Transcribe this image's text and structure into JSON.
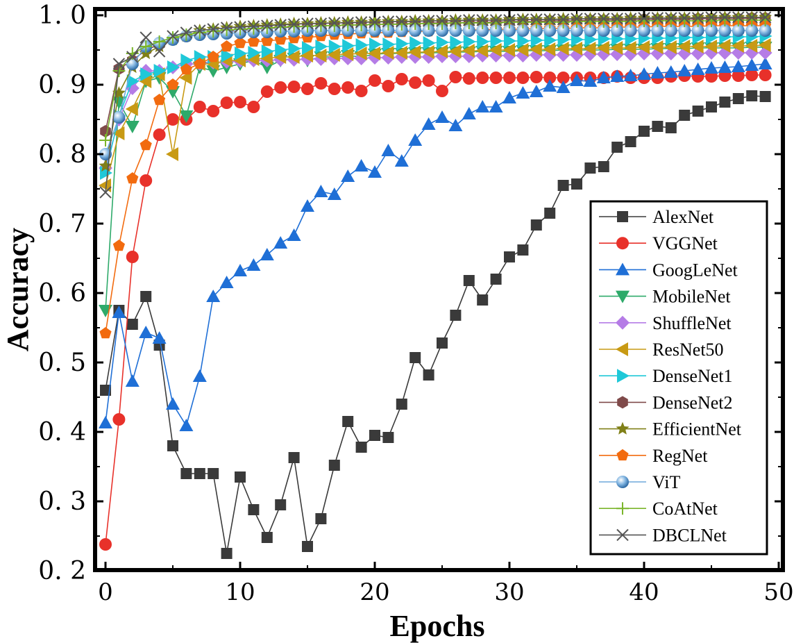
{
  "chart_data": {
    "type": "line",
    "title": "",
    "xlabel": "Epochs",
    "ylabel": "Accuracy",
    "xlim": [
      -1,
      50
    ],
    "ylim": [
      0.2,
      1.01
    ],
    "xticks": [
      0,
      10,
      20,
      30,
      40,
      50
    ],
    "yticks": [
      0.2,
      0.3,
      0.4,
      0.5,
      0.6,
      0.7,
      0.8,
      0.9,
      1.0
    ],
    "xtick_labels": [
      "0",
      "10",
      "20",
      "30",
      "40",
      "50"
    ],
    "ytick_labels": [
      "0. 2",
      "0. 3",
      "0. 4",
      "0. 5",
      "0. 6",
      "0. 7",
      "0. 8",
      "0. 9",
      "1. 0"
    ],
    "grid": false,
    "legend_position": "bottom-right",
    "x": [
      0,
      1,
      2,
      3,
      4,
      5,
      6,
      7,
      8,
      9,
      10,
      11,
      12,
      13,
      14,
      15,
      16,
      17,
      18,
      19,
      20,
      21,
      22,
      23,
      24,
      25,
      26,
      27,
      28,
      29,
      30,
      31,
      32,
      33,
      34,
      35,
      36,
      37,
      38,
      39,
      40,
      41,
      42,
      43,
      44,
      45,
      46,
      47,
      48,
      49
    ],
    "series": [
      {
        "name": "AlexNet",
        "color": "#3a3a3a",
        "marker": "square",
        "values": [
          0.46,
          0.575,
          0.555,
          0.595,
          0.525,
          0.38,
          0.34,
          0.34,
          0.34,
          0.225,
          0.335,
          0.288,
          0.248,
          0.295,
          0.363,
          0.235,
          0.275,
          0.352,
          0.415,
          0.378,
          0.395,
          0.392,
          0.44,
          0.507,
          0.482,
          0.528,
          0.568,
          0.618,
          0.59,
          0.62,
          0.652,
          0.662,
          0.698,
          0.715,
          0.755,
          0.757,
          0.78,
          0.782,
          0.81,
          0.818,
          0.833,
          0.84,
          0.838,
          0.856,
          0.862,
          0.868,
          0.875,
          0.88,
          0.884,
          0.883
        ]
      },
      {
        "name": "VGGNet",
        "color": "#e8312a",
        "marker": "circle",
        "values": [
          0.238,
          0.418,
          0.652,
          0.762,
          0.828,
          0.85,
          0.85,
          0.868,
          0.862,
          0.874,
          0.875,
          0.868,
          0.89,
          0.896,
          0.897,
          0.894,
          0.902,
          0.894,
          0.896,
          0.891,
          0.906,
          0.898,
          0.908,
          0.903,
          0.906,
          0.891,
          0.911,
          0.909,
          0.91,
          0.91,
          0.91,
          0.91,
          0.911,
          0.91,
          0.91,
          0.91,
          0.91,
          0.91,
          0.912,
          0.91,
          0.91,
          0.91,
          0.912,
          0.913,
          0.912,
          0.912,
          0.913,
          0.913,
          0.914,
          0.914
        ]
      },
      {
        "name": "GoogLeNet",
        "color": "#1f6fd6",
        "marker": "triangle-up",
        "values": [
          0.413,
          0.572,
          0.473,
          0.543,
          0.535,
          0.44,
          0.409,
          0.48,
          0.595,
          0.615,
          0.632,
          0.64,
          0.655,
          0.672,
          0.683,
          0.725,
          0.746,
          0.742,
          0.768,
          0.783,
          0.774,
          0.805,
          0.79,
          0.82,
          0.843,
          0.853,
          0.841,
          0.858,
          0.868,
          0.868,
          0.881,
          0.888,
          0.89,
          0.898,
          0.896,
          0.906,
          0.905,
          0.91,
          0.912,
          0.913,
          0.915,
          0.917,
          0.918,
          0.92,
          0.922,
          0.924,
          0.925,
          0.926,
          0.928,
          0.93
        ]
      },
      {
        "name": "MobileNet",
        "color": "#2eaa6a",
        "marker": "triangle-down",
        "values": [
          0.575,
          0.875,
          0.84,
          0.905,
          0.91,
          0.89,
          0.855,
          0.925,
          0.92,
          0.925,
          0.93,
          0.935,
          0.925,
          0.935,
          0.938,
          0.935,
          0.94,
          0.94,
          0.942,
          0.94,
          0.944,
          0.945,
          0.945,
          0.946,
          0.946,
          0.946,
          0.947,
          0.947,
          0.948,
          0.948,
          0.948,
          0.949,
          0.949,
          0.949,
          0.95,
          0.95,
          0.95,
          0.95,
          0.951,
          0.951,
          0.951,
          0.952,
          0.952,
          0.952,
          0.953,
          0.953,
          0.953,
          0.953,
          0.954,
          0.954
        ]
      },
      {
        "name": "ShuffleNet",
        "color": "#b57ce6",
        "marker": "diamond",
        "values": [
          0.78,
          0.85,
          0.895,
          0.92,
          0.92,
          0.925,
          0.93,
          0.93,
          0.932,
          0.933,
          0.934,
          0.935,
          0.935,
          0.936,
          0.936,
          0.937,
          0.937,
          0.938,
          0.938,
          0.938,
          0.939,
          0.939,
          0.94,
          0.94,
          0.94,
          0.941,
          0.941,
          0.941,
          0.942,
          0.942,
          0.942,
          0.942,
          0.943,
          0.943,
          0.943,
          0.943,
          0.944,
          0.944,
          0.944,
          0.944,
          0.945,
          0.945,
          0.945,
          0.945,
          0.945,
          0.946,
          0.946,
          0.946,
          0.946,
          0.946
        ]
      },
      {
        "name": "ResNet50",
        "color": "#c89a14",
        "marker": "triangle-left",
        "values": [
          0.755,
          0.83,
          0.865,
          0.905,
          0.915,
          0.8,
          0.91,
          0.93,
          0.93,
          0.935,
          0.935,
          0.937,
          0.938,
          0.94,
          0.94,
          0.942,
          0.942,
          0.943,
          0.944,
          0.945,
          0.945,
          0.946,
          0.946,
          0.947,
          0.947,
          0.948,
          0.948,
          0.949,
          0.949,
          0.95,
          0.95,
          0.95,
          0.951,
          0.951,
          0.952,
          0.952,
          0.952,
          0.953,
          0.953,
          0.953,
          0.954,
          0.954,
          0.954,
          0.955,
          0.955,
          0.955,
          0.956,
          0.956,
          0.956,
          0.957
        ]
      },
      {
        "name": "DenseNet1",
        "color": "#1fc8d8",
        "marker": "triangle-right",
        "values": [
          0.773,
          0.855,
          0.905,
          0.915,
          0.92,
          0.925,
          0.935,
          0.94,
          0.94,
          0.942,
          0.945,
          0.946,
          0.948,
          0.95,
          0.952,
          0.953,
          0.955,
          0.955,
          0.956,
          0.957,
          0.958,
          0.958,
          0.959,
          0.96,
          0.96,
          0.961,
          0.961,
          0.962,
          0.962,
          0.963,
          0.963,
          0.963,
          0.964,
          0.964,
          0.965,
          0.965,
          0.965,
          0.966,
          0.966,
          0.966,
          0.967,
          0.967,
          0.967,
          0.968,
          0.968,
          0.968,
          0.969,
          0.969,
          0.969,
          0.97
        ]
      },
      {
        "name": "DenseNet2",
        "color": "#7f4a4a",
        "marker": "hexagon",
        "values": [
          0.833,
          0.923,
          0.935,
          0.95,
          0.958,
          0.965,
          0.97,
          0.972,
          0.975,
          0.977,
          0.978,
          0.98,
          0.981,
          0.982,
          0.983,
          0.984,
          0.985,
          0.985,
          0.986,
          0.986,
          0.987,
          0.987,
          0.988,
          0.988,
          0.989,
          0.989,
          0.989,
          0.99,
          0.99,
          0.99,
          0.991,
          0.991,
          0.991,
          0.992,
          0.992,
          0.992,
          0.993,
          0.993,
          0.993,
          0.993,
          0.994,
          0.994,
          0.994,
          0.994,
          0.995,
          0.995,
          0.995,
          0.995,
          0.996,
          0.996
        ]
      },
      {
        "name": "EfficientNet",
        "color": "#808018",
        "marker": "star",
        "values": [
          0.783,
          0.888,
          0.925,
          0.945,
          0.955,
          0.965,
          0.97,
          0.978,
          0.98,
          0.982,
          0.984,
          0.985,
          0.986,
          0.987,
          0.988,
          0.988,
          0.989,
          0.989,
          0.99,
          0.99,
          0.991,
          0.991,
          0.991,
          0.992,
          0.992,
          0.992,
          0.993,
          0.993,
          0.993,
          0.993,
          0.994,
          0.994,
          0.994,
          0.994,
          0.995,
          0.995,
          0.995,
          0.995,
          0.995,
          0.996,
          0.996,
          0.996,
          0.996,
          0.996,
          0.997,
          0.997,
          0.997,
          0.997,
          0.997,
          0.997
        ]
      },
      {
        "name": "RegNet",
        "color": "#f26b0f",
        "marker": "pentagon",
        "values": [
          0.542,
          0.668,
          0.765,
          0.813,
          0.878,
          0.9,
          0.922,
          0.93,
          0.94,
          0.955,
          0.96,
          0.962,
          0.963,
          0.965,
          0.967,
          0.968,
          0.97,
          0.972,
          0.973,
          0.974,
          0.975,
          0.975,
          0.976,
          0.977,
          0.977,
          0.978,
          0.978,
          0.979,
          0.979,
          0.98,
          0.98,
          0.98,
          0.981,
          0.981,
          0.981,
          0.982,
          0.982,
          0.982,
          0.983,
          0.983,
          0.983,
          0.984,
          0.984,
          0.984,
          0.984,
          0.985,
          0.985,
          0.985,
          0.985,
          0.985
        ]
      },
      {
        "name": "ViT",
        "color": "#6ea8dc",
        "marker": "sphere",
        "values": [
          0.8,
          0.853,
          0.93,
          0.955,
          0.96,
          0.965,
          0.97,
          0.972,
          0.973,
          0.974,
          0.975,
          0.976,
          0.976,
          0.977,
          0.977,
          0.978,
          0.978,
          0.978,
          0.978,
          0.978,
          0.978,
          0.978,
          0.978,
          0.978,
          0.978,
          0.978,
          0.978,
          0.978,
          0.978,
          0.978,
          0.978,
          0.978,
          0.978,
          0.978,
          0.978,
          0.978,
          0.978,
          0.978,
          0.978,
          0.978,
          0.978,
          0.978,
          0.978,
          0.978,
          0.978,
          0.978,
          0.978,
          0.978,
          0.978,
          0.978
        ]
      },
      {
        "name": "CoAtNet",
        "color": "#7ab52a",
        "marker": "plus",
        "values": [
          0.82,
          0.92,
          0.945,
          0.955,
          0.962,
          0.968,
          0.972,
          0.975,
          0.977,
          0.979,
          0.98,
          0.981,
          0.982,
          0.983,
          0.984,
          0.984,
          0.985,
          0.985,
          0.986,
          0.986,
          0.987,
          0.987,
          0.987,
          0.988,
          0.988,
          0.988,
          0.989,
          0.989,
          0.989,
          0.989,
          0.99,
          0.99,
          0.99,
          0.99,
          0.99,
          0.991,
          0.991,
          0.991,
          0.991,
          0.991,
          0.992,
          0.992,
          0.992,
          0.992,
          0.992,
          0.992,
          0.993,
          0.993,
          0.993,
          0.993
        ]
      },
      {
        "name": "DBCLNet",
        "color": "#555555",
        "marker": "x",
        "values": [
          0.745,
          0.93,
          0.94,
          0.968,
          0.948,
          0.97,
          0.975,
          0.978,
          0.98,
          0.982,
          0.983,
          0.984,
          0.985,
          0.986,
          0.987,
          0.988,
          0.988,
          0.989,
          0.989,
          0.99,
          0.99,
          0.991,
          0.991,
          0.991,
          0.992,
          0.992,
          0.992,
          0.993,
          0.993,
          0.993,
          0.993,
          0.994,
          0.994,
          0.994,
          0.994,
          0.995,
          0.995,
          0.995,
          0.995,
          0.995,
          0.996,
          0.996,
          0.996,
          0.996,
          0.996,
          0.997,
          0.997,
          0.997,
          0.997,
          0.997
        ]
      }
    ]
  }
}
